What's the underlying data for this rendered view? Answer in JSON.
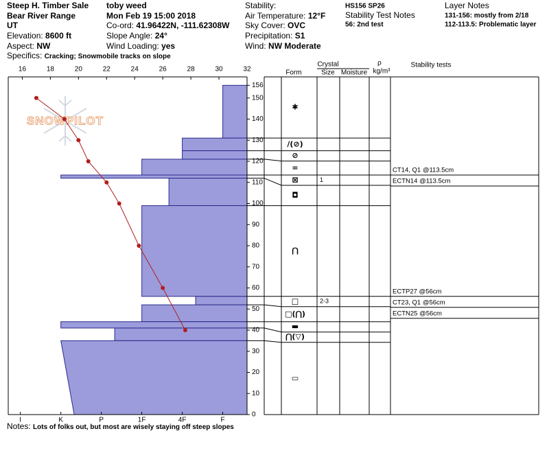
{
  "header": {
    "location": "Steep H. Timber Sale",
    "range": "Bear River Range",
    "state": "UT",
    "elevation": {
      "label": "Elevation:",
      "value": "8600 ft"
    },
    "aspect": {
      "label": "Aspect:",
      "value": "NW"
    },
    "specifics": {
      "label": "Specifics:",
      "value": "Cracking; Snowmobile tracks on slope"
    },
    "observer": "toby weed",
    "date": "Mon Feb 19 15:00 2018",
    "coord": {
      "label": "Co-ord:",
      "value": "41.96422N, -111.62308W"
    },
    "slope": {
      "label": "Slope Angle:",
      "value": "24°"
    },
    "wind_loading": {
      "label": "Wind Loading:",
      "value": "yes"
    },
    "stability": "Stability:",
    "air_temp": {
      "label": "Air Temperature:",
      "value": "12°F"
    },
    "sky": {
      "label": "Sky Cover:",
      "value": "OVC"
    },
    "precip": {
      "label": "Precipitation:",
      "value": "S1"
    },
    "wind": {
      "label": "Wind:",
      "value": "NW Moderate"
    },
    "hs": "HS156  SP26",
    "test_notes_title": "Stability Test Notes",
    "test_note": "56: 2nd test",
    "layer_notes_title": "Layer Notes",
    "layer_notes": [
      "131-156: mostly from 2/18",
      "112-113.5: Problematic layer"
    ]
  },
  "notes": {
    "label": "Notes:",
    "value": "Lots of folks out, but most are wisely staying off steep slopes"
  },
  "logo": "SNOWPILOT",
  "chart_data": {
    "type": "snow-profile",
    "ylim": [
      0,
      160
    ],
    "yticks": [
      0,
      10,
      20,
      30,
      40,
      50,
      60,
      70,
      80,
      90,
      100,
      110,
      120,
      130,
      140,
      150,
      156
    ],
    "temperature_lim": [
      15,
      32
    ],
    "temperature_ticks": [
      16,
      18,
      20,
      22,
      24,
      26,
      28,
      30,
      32
    ],
    "hardness_lim": [
      6.3,
      0.4
    ],
    "hardness_ticks": [
      {
        "value": 6,
        "label": "I"
      },
      {
        "value": 5,
        "label": "K"
      },
      {
        "value": 4,
        "label": "P"
      },
      {
        "value": 3,
        "label": "1F"
      },
      {
        "value": 2,
        "label": "4F"
      },
      {
        "value": 1,
        "label": "F"
      }
    ],
    "hardness_color": "#9c9cdc",
    "temperature_color": "#b0201c",
    "temperature": {
      "depth": [
        150,
        140,
        130,
        120,
        110,
        100,
        80,
        60,
        40
      ],
      "values": [
        17,
        19,
        20,
        20.7,
        22,
        22.9,
        24.3,
        26,
        27.6
      ]
    },
    "table_headers": {
      "crystal": "Crystal",
      "form": "Form",
      "size": "Size",
      "moisture": "Moisture",
      "rho": "ρ",
      "density_unit": "kg/m³",
      "tests": "Stability tests"
    },
    "layers": [
      {
        "top": 156,
        "bottom": 131,
        "hardness": 1,
        "form": "✱"
      },
      {
        "top": 131,
        "bottom": 125,
        "hardness": 2,
        "form": "/(⊘)"
      },
      {
        "top": 125,
        "bottom": 121,
        "hardness": 2,
        "form": "⊘"
      },
      {
        "top": 121,
        "bottom": 113.5,
        "hardness": 3,
        "form": "="
      },
      {
        "top": 113.5,
        "bottom": 112,
        "hardness": 5,
        "form": "⊠",
        "size": "1"
      },
      {
        "top": 112,
        "bottom": 99,
        "hardness": 2.33,
        "form": "◘"
      },
      {
        "top": 99,
        "bottom": 56,
        "hardness": 3,
        "form": "⋂"
      },
      {
        "top": 56,
        "bottom": 52,
        "hardness": 1.67,
        "form": "□",
        "size": "2-3"
      },
      {
        "top": 52,
        "bottom": 44,
        "hardness": 3,
        "form": "□(⋂)"
      },
      {
        "top": 44,
        "bottom": 41,
        "hardness": 5,
        "form": "▬"
      },
      {
        "top": 41,
        "bottom": 35,
        "hardness": 3.67,
        "form": "⋂(▽)"
      },
      {
        "top": 35,
        "bottom": 0,
        "hardness": 5,
        "hardness_bottom": 4.67,
        "form": "▭"
      }
    ],
    "tests": [
      {
        "depth": 113.5,
        "results": [
          "CT14, Q1 @113.5cm",
          "ECTN14 @113.5cm"
        ]
      },
      {
        "depth": 56,
        "results": [
          "ECTP27 @56cm",
          "CT23, Q1 @56cm",
          "ECTN25 @56cm"
        ]
      }
    ]
  }
}
